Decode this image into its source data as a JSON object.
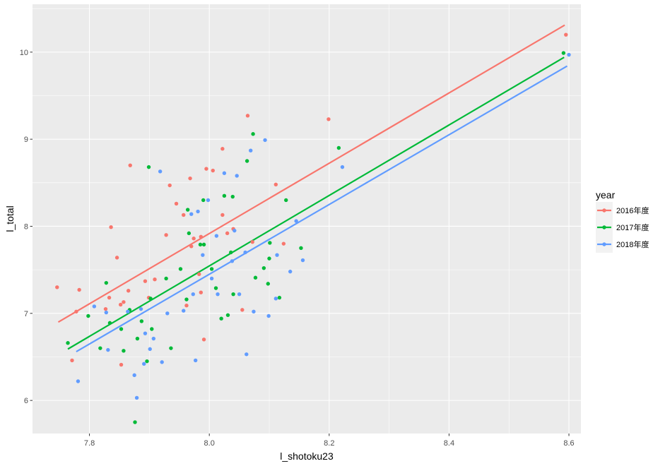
{
  "chart_data": {
    "type": "scatter",
    "xlabel": "l_shotoku23",
    "ylabel": "l_total",
    "xlim": [
      7.705,
      8.62
    ],
    "ylim": [
      5.62,
      10.55
    ],
    "x_ticks": [
      7.8,
      8.0,
      8.2,
      8.4,
      8.6
    ],
    "x_tick_labels": [
      "7.8",
      "8.0",
      "8.2",
      "8.4",
      "8.6"
    ],
    "y_ticks": [
      6,
      7,
      8,
      9,
      10
    ],
    "y_tick_labels": [
      "6",
      "7",
      "8",
      "9",
      "10"
    ],
    "grid": true,
    "background": "#EBEBEB",
    "legend": {
      "title": "year",
      "position": "right"
    },
    "series": [
      {
        "name": "2016年度",
        "color": "#F8766D",
        "fit_line": [
          [
            7.748,
            6.9
          ],
          [
            8.593,
            10.31
          ]
        ],
        "points": [
          [
            7.746,
            7.3
          ],
          [
            7.771,
            6.46
          ],
          [
            7.778,
            7.02
          ],
          [
            7.783,
            7.27
          ],
          [
            7.827,
            7.05
          ],
          [
            7.833,
            7.18
          ],
          [
            7.836,
            7.99
          ],
          [
            7.846,
            7.64
          ],
          [
            7.852,
            7.1
          ],
          [
            7.853,
            6.41
          ],
          [
            7.857,
            7.13
          ],
          [
            7.865,
            7.26
          ],
          [
            7.868,
            8.7
          ],
          [
            7.893,
            7.37
          ],
          [
            7.899,
            7.18
          ],
          [
            7.909,
            7.39
          ],
          [
            7.928,
            7.9
          ],
          [
            7.934,
            8.47
          ],
          [
            7.945,
            8.26
          ],
          [
            7.957,
            8.13
          ],
          [
            7.962,
            7.09
          ],
          [
            7.968,
            8.55
          ],
          [
            7.97,
            7.77
          ],
          [
            7.974,
            7.86
          ],
          [
            7.983,
            7.45
          ],
          [
            7.986,
            7.24
          ],
          [
            7.986,
            7.88
          ],
          [
            7.991,
            6.7
          ],
          [
            7.995,
            8.66
          ],
          [
            8.006,
            8.64
          ],
          [
            8.022,
            8.13
          ],
          [
            8.022,
            8.89
          ],
          [
            8.03,
            7.92
          ],
          [
            8.04,
            7.97
          ],
          [
            8.055,
            7.04
          ],
          [
            8.064,
            9.27
          ],
          [
            8.072,
            7.82
          ],
          [
            8.111,
            8.48
          ],
          [
            8.124,
            7.8
          ],
          [
            8.199,
            9.23
          ],
          [
            8.595,
            10.2
          ]
        ]
      },
      {
        "name": "2017年度",
        "color": "#00BA38",
        "fit_line": [
          [
            7.764,
            6.59
          ],
          [
            8.592,
            9.94
          ]
        ],
        "points": [
          [
            7.764,
            6.66
          ],
          [
            7.798,
            6.97
          ],
          [
            7.818,
            6.6
          ],
          [
            7.828,
            7.35
          ],
          [
            7.834,
            6.89
          ],
          [
            7.853,
            6.82
          ],
          [
            7.857,
            6.57
          ],
          [
            7.867,
            7.04
          ],
          [
            7.876,
            5.75
          ],
          [
            7.88,
            6.71
          ],
          [
            7.887,
            6.91
          ],
          [
            7.896,
            6.45
          ],
          [
            7.899,
            8.68
          ],
          [
            7.902,
            7.17
          ],
          [
            7.904,
            6.82
          ],
          [
            7.928,
            7.4
          ],
          [
            7.936,
            6.6
          ],
          [
            7.952,
            7.51
          ],
          [
            7.962,
            7.16
          ],
          [
            7.964,
            8.19
          ],
          [
            7.966,
            7.92
          ],
          [
            7.985,
            7.79
          ],
          [
            7.99,
            8.3
          ],
          [
            7.991,
            7.79
          ],
          [
            8.004,
            7.51
          ],
          [
            8.011,
            7.29
          ],
          [
            8.02,
            6.94
          ],
          [
            8.025,
            8.35
          ],
          [
            8.031,
            6.98
          ],
          [
            8.036,
            7.7
          ],
          [
            8.039,
            8.34
          ],
          [
            8.04,
            7.22
          ],
          [
            8.063,
            8.75
          ],
          [
            8.073,
            9.06
          ],
          [
            8.077,
            7.41
          ],
          [
            8.091,
            7.52
          ],
          [
            8.098,
            7.34
          ],
          [
            8.1,
            7.63
          ],
          [
            8.101,
            7.81
          ],
          [
            8.117,
            7.18
          ],
          [
            8.128,
            8.3
          ],
          [
            8.153,
            7.75
          ],
          [
            8.216,
            8.9
          ],
          [
            8.591,
            9.99
          ]
        ]
      },
      {
        "name": "2018年度",
        "color": "#619CFF",
        "fit_line": [
          [
            7.778,
            6.56
          ],
          [
            8.597,
            9.84
          ]
        ],
        "points": [
          [
            7.781,
            6.22
          ],
          [
            7.808,
            7.08
          ],
          [
            7.828,
            7.01
          ],
          [
            7.831,
            6.58
          ],
          [
            7.864,
            7.02
          ],
          [
            7.875,
            6.29
          ],
          [
            7.879,
            6.03
          ],
          [
            7.886,
            7.05
          ],
          [
            7.891,
            6.42
          ],
          [
            7.893,
            6.77
          ],
          [
            7.901,
            6.59
          ],
          [
            7.907,
            6.71
          ],
          [
            7.918,
            8.63
          ],
          [
            7.921,
            6.44
          ],
          [
            7.93,
            7.0
          ],
          [
            7.957,
            7.03
          ],
          [
            7.97,
            8.14
          ],
          [
            7.973,
            7.22
          ],
          [
            7.977,
            6.46
          ],
          [
            7.981,
            8.17
          ],
          [
            7.989,
            7.67
          ],
          [
            7.998,
            8.3
          ],
          [
            8.004,
            7.4
          ],
          [
            8.012,
            7.89
          ],
          [
            8.014,
            7.22
          ],
          [
            8.025,
            8.61
          ],
          [
            8.038,
            7.6
          ],
          [
            8.042,
            7.95
          ],
          [
            8.046,
            8.58
          ],
          [
            8.05,
            7.22
          ],
          [
            8.06,
            7.7
          ],
          [
            8.062,
            6.53
          ],
          [
            8.069,
            8.87
          ],
          [
            8.074,
            7.02
          ],
          [
            8.093,
            8.99
          ],
          [
            8.099,
            6.97
          ],
          [
            8.111,
            7.17
          ],
          [
            8.113,
            7.67
          ],
          [
            8.135,
            7.48
          ],
          [
            8.145,
            8.06
          ],
          [
            8.156,
            7.61
          ],
          [
            8.222,
            8.68
          ],
          [
            8.6,
            9.97
          ]
        ]
      }
    ]
  }
}
